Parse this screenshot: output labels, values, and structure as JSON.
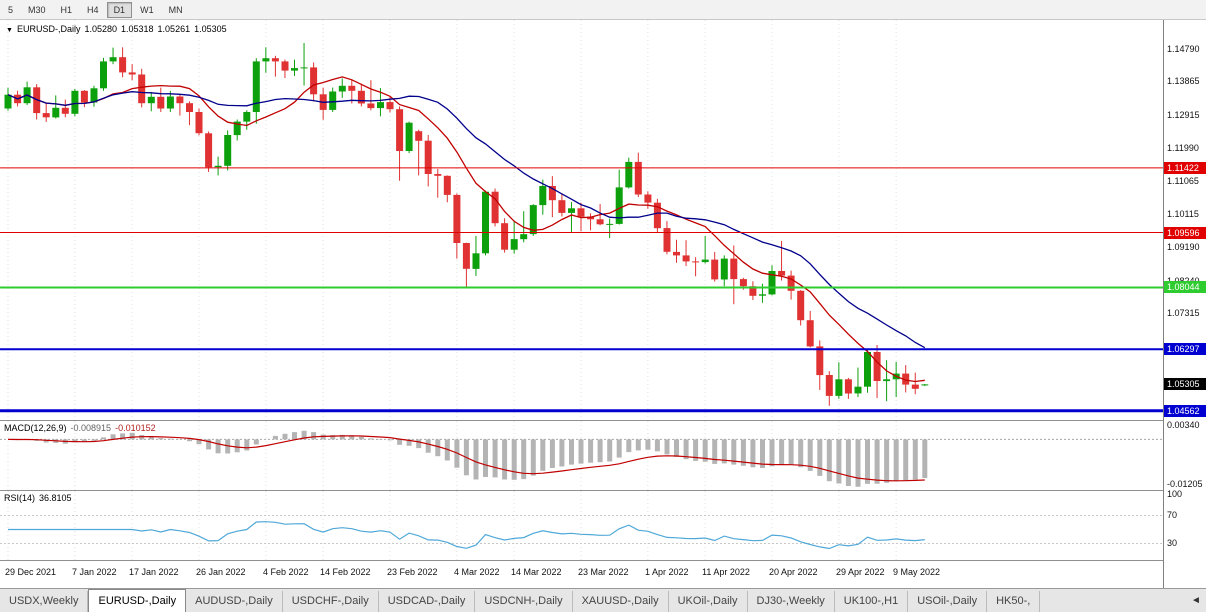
{
  "toolbar": {
    "timeframes": [
      {
        "label": "5",
        "active": false
      },
      {
        "label": "M30",
        "active": false
      },
      {
        "label": "H1",
        "active": false
      },
      {
        "label": "H4",
        "active": false
      },
      {
        "label": "D1",
        "active": true
      },
      {
        "label": "W1",
        "active": false
      },
      {
        "label": "MN",
        "active": false
      }
    ]
  },
  "main_chart": {
    "dropdown_arrow": "▼",
    "symbol_label": "EURUSD-,Daily",
    "open": "1.05280",
    "high": "1.05318",
    "low": "1.05261",
    "close": "1.05305"
  },
  "macd_panel": {
    "label": "MACD(12,26,9)",
    "value_main": "-0.008915",
    "value_signal": "-0.010152"
  },
  "rsi_panel": {
    "label": "RSI(14)",
    "value": "36.8105"
  },
  "tabs": {
    "items": [
      {
        "label": "USDX,Weekly",
        "active": false
      },
      {
        "label": "EURUSD-,Daily",
        "active": true
      },
      {
        "label": "AUDUSD-,Daily",
        "active": false
      },
      {
        "label": "USDCHF-,Daily",
        "active": false
      },
      {
        "label": "USDCAD-,Daily",
        "active": false
      },
      {
        "label": "USDCNH-,Daily",
        "active": false
      },
      {
        "label": "XAUUSD-,Daily",
        "active": false
      },
      {
        "label": "UKOil-,Daily",
        "active": false
      },
      {
        "label": "DJ30-,Weekly",
        "active": false
      },
      {
        "label": "UK100-,H1",
        "active": false
      },
      {
        "label": "USOil-,Daily",
        "active": false
      },
      {
        "label": "HK50-,",
        "active": false
      }
    ],
    "scroll_left_arrow": "◄"
  },
  "chart_data": {
    "type": "candlestick",
    "symbol": "EURUSD-",
    "timeframe": "Daily",
    "up_color": "#0CA10C",
    "down_color": "#E03232",
    "price_range": [
      1.043,
      1.156
    ],
    "y_axis_labels": [
      {
        "value": 1.1479,
        "label": "1.14790"
      },
      {
        "value": 1.13865,
        "label": "1.13865"
      },
      {
        "value": 1.12915,
        "label": "1.12915"
      },
      {
        "value": 1.1199,
        "label": "1.11990"
      },
      {
        "value": 1.11065,
        "label": "1.11065"
      },
      {
        "value": 1.10115,
        "label": "1.10115"
      },
      {
        "value": 1.0919,
        "label": "1.09190"
      },
      {
        "value": 1.0824,
        "label": "1.08240"
      },
      {
        "value": 1.07315,
        "label": "1.07315"
      }
    ],
    "hlines": [
      {
        "price": 1.11422,
        "label": "1.11422",
        "color": "#E00000",
        "width": 1
      },
      {
        "price": 1.09596,
        "label": "1.09596",
        "color": "#E00000",
        "width": 1
      },
      {
        "price": 1.08044,
        "label": "1.08044",
        "color": "#2FCC2F",
        "width": 2
      },
      {
        "price": 1.06297,
        "label": "1.06297",
        "color": "#0000D0",
        "width": 2
      },
      {
        "price": 1.04562,
        "label": "1.04562",
        "color": "#0000D0",
        "width": 3
      }
    ],
    "current_price": {
      "value": 1.05305,
      "label": "1.05305",
      "color": "#000000"
    },
    "moving_averages": [
      {
        "period": 10,
        "color": "#C00000",
        "type": "sma"
      },
      {
        "period": 20,
        "color": "#00008B",
        "type": "sma"
      }
    ],
    "x_axis_labels": [
      {
        "index": 0,
        "label": "29 Dec 2021"
      },
      {
        "index": 7,
        "label": "7 Jan 2022"
      },
      {
        "index": 13,
        "label": "17 Jan 2022"
      },
      {
        "index": 20,
        "label": "26 Jan 2022"
      },
      {
        "index": 27,
        "label": "4 Feb 2022"
      },
      {
        "index": 33,
        "label": "14 Feb 2022"
      },
      {
        "index": 40,
        "label": "23 Feb 2022"
      },
      {
        "index": 47,
        "label": "4 Mar 2022"
      },
      {
        "index": 53,
        "label": "14 Mar 2022"
      },
      {
        "index": 60,
        "label": "23 Mar 2022"
      },
      {
        "index": 67,
        "label": "1 Apr 2022"
      },
      {
        "index": 73,
        "label": "11 Apr 2022"
      },
      {
        "index": 80,
        "label": "20 Apr 2022"
      },
      {
        "index": 87,
        "label": "29 Apr 2022"
      },
      {
        "index": 93,
        "label": "9 May 2022"
      }
    ],
    "candles": [
      [
        1.131,
        1.1369,
        1.1304,
        1.1349
      ],
      [
        1.1349,
        1.136,
        1.1316,
        1.1325
      ],
      [
        1.1325,
        1.1386,
        1.132,
        1.137
      ],
      [
        1.137,
        1.1379,
        1.1279,
        1.1297
      ],
      [
        1.1297,
        1.1324,
        1.1272,
        1.1285
      ],
      [
        1.1285,
        1.1347,
        1.1282,
        1.1312
      ],
      [
        1.1312,
        1.1335,
        1.1285,
        1.1295
      ],
      [
        1.1295,
        1.1365,
        1.1288,
        1.136
      ],
      [
        1.136,
        1.1362,
        1.1314,
        1.1327
      ],
      [
        1.1327,
        1.1374,
        1.1315,
        1.1367
      ],
      [
        1.1367,
        1.1453,
        1.136,
        1.1443
      ],
      [
        1.1443,
        1.1482,
        1.1435,
        1.1455
      ],
      [
        1.1455,
        1.1483,
        1.1398,
        1.1412
      ],
      [
        1.1412,
        1.1435,
        1.139,
        1.1406
      ],
      [
        1.1406,
        1.1422,
        1.1313,
        1.1325
      ],
      [
        1.1325,
        1.1357,
        1.1302,
        1.1343
      ],
      [
        1.1343,
        1.1369,
        1.13,
        1.131
      ],
      [
        1.131,
        1.136,
        1.13,
        1.1344
      ],
      [
        1.1344,
        1.1348,
        1.129,
        1.1325
      ],
      [
        1.1325,
        1.133,
        1.1263,
        1.13
      ],
      [
        1.13,
        1.131,
        1.1234,
        1.124
      ],
      [
        1.124,
        1.1245,
        1.1131,
        1.1144
      ],
      [
        1.1144,
        1.1174,
        1.1121,
        1.1148
      ],
      [
        1.1148,
        1.1248,
        1.1135,
        1.1235
      ],
      [
        1.1235,
        1.1279,
        1.122,
        1.1273
      ],
      [
        1.1273,
        1.1305,
        1.125,
        1.13
      ],
      [
        1.13,
        1.1452,
        1.1267,
        1.1443
      ],
      [
        1.1443,
        1.1483,
        1.1411,
        1.1452
      ],
      [
        1.1452,
        1.1459,
        1.14,
        1.1443
      ],
      [
        1.1443,
        1.1448,
        1.1396,
        1.1417
      ],
      [
        1.1417,
        1.1448,
        1.1402,
        1.1424
      ],
      [
        1.1424,
        1.1495,
        1.1375,
        1.1426
      ],
      [
        1.1426,
        1.144,
        1.133,
        1.135
      ],
      [
        1.135,
        1.1369,
        1.1278,
        1.1306
      ],
      [
        1.1306,
        1.1369,
        1.13,
        1.1358
      ],
      [
        1.1358,
        1.1395,
        1.134,
        1.1374
      ],
      [
        1.1374,
        1.1392,
        1.1324,
        1.136
      ],
      [
        1.136,
        1.138,
        1.1316,
        1.1324
      ],
      [
        1.1324,
        1.139,
        1.1305,
        1.1311
      ],
      [
        1.1311,
        1.1368,
        1.1288,
        1.1328
      ],
      [
        1.1328,
        1.1344,
        1.1299,
        1.1308
      ],
      [
        1.1308,
        1.1316,
        1.1106,
        1.119
      ],
      [
        1.119,
        1.1273,
        1.1184,
        1.127
      ],
      [
        1.1246,
        1.125,
        1.1121,
        1.1219
      ],
      [
        1.1219,
        1.1235,
        1.109,
        1.1125
      ],
      [
        1.1125,
        1.1139,
        1.1058,
        1.112
      ],
      [
        1.112,
        1.1121,
        1.1045,
        1.1066
      ],
      [
        1.1066,
        1.107,
        1.0886,
        1.093
      ],
      [
        1.093,
        1.0931,
        1.0806,
        1.0857
      ],
      [
        1.0857,
        1.095,
        1.0837,
        1.0901
      ],
      [
        1.0901,
        1.1078,
        1.0895,
        1.1075
      ],
      [
        1.1075,
        1.1084,
        1.0977,
        1.0986
      ],
      [
        1.0986,
        1.1,
        1.0903,
        1.0911
      ],
      [
        1.0911,
        1.0992,
        1.09,
        1.0941
      ],
      [
        1.0941,
        1.102,
        1.0932,
        1.0955
      ],
      [
        1.0955,
        1.104,
        1.095,
        1.1037
      ],
      [
        1.1037,
        1.1109,
        1.101,
        1.1091
      ],
      [
        1.1091,
        1.1119,
        1.1003,
        1.1051
      ],
      [
        1.1051,
        1.1069,
        1.1005,
        1.1015
      ],
      [
        1.1015,
        1.1046,
        1.096,
        1.1028
      ],
      [
        1.1028,
        1.1044,
        1.0963,
        1.1004
      ],
      [
        1.1004,
        1.1014,
        1.0966,
        1.0997
      ],
      [
        1.0997,
        1.104,
        1.098,
        1.0983
      ],
      [
        1.0983,
        1.0999,
        1.0944,
        1.0984
      ],
      [
        1.0984,
        1.1137,
        1.0982,
        1.1087
      ],
      [
        1.1087,
        1.1171,
        1.1084,
        1.1159
      ],
      [
        1.1159,
        1.1185,
        1.106,
        1.1067
      ],
      [
        1.1067,
        1.1076,
        1.1027,
        1.1044
      ],
      [
        1.1044,
        1.1055,
        1.096,
        1.0972
      ],
      [
        1.0972,
        1.0992,
        1.0898,
        1.0905
      ],
      [
        1.0905,
        1.0939,
        1.0874,
        1.0895
      ],
      [
        1.0895,
        1.0938,
        1.0865,
        1.0878
      ],
      [
        1.0878,
        1.089,
        1.0836,
        1.0876
      ],
      [
        1.0876,
        1.095,
        1.0872,
        1.0883
      ],
      [
        1.0883,
        1.0905,
        1.0821,
        1.0827
      ],
      [
        1.0827,
        1.0895,
        1.0808,
        1.0886
      ],
      [
        1.0886,
        1.0923,
        1.0757,
        1.0828
      ],
      [
        1.0828,
        1.0832,
        1.0798,
        1.0808
      ],
      [
        1.0808,
        1.0822,
        1.0769,
        1.0781
      ],
      [
        1.0781,
        1.0815,
        1.0761,
        1.0785
      ],
      [
        1.0785,
        1.0867,
        1.0782,
        1.0851
      ],
      [
        1.0851,
        1.0936,
        1.0824,
        1.0838
      ],
      [
        1.0838,
        1.0852,
        1.077,
        1.0795
      ],
      [
        1.0795,
        1.0797,
        1.0697,
        1.0712
      ],
      [
        1.0712,
        1.0738,
        1.0635,
        1.0638
      ],
      [
        1.0638,
        1.0655,
        1.0515,
        1.0557
      ],
      [
        1.0557,
        1.0568,
        1.047,
        1.0498
      ],
      [
        1.0498,
        1.0593,
        1.049,
        1.0545
      ],
      [
        1.0545,
        1.0549,
        1.049,
        1.0505
      ],
      [
        1.0505,
        1.0578,
        1.0495,
        1.0524
      ],
      [
        1.0524,
        1.0632,
        1.0507,
        1.0622
      ],
      [
        1.0622,
        1.0642,
        1.0492,
        1.054
      ],
      [
        1.054,
        1.0599,
        1.0483,
        1.0545
      ],
      [
        1.0545,
        1.0594,
        1.0495,
        1.0561
      ],
      [
        1.0561,
        1.0585,
        1.0508,
        1.053
      ],
      [
        1.053,
        1.0564,
        1.0503,
        1.0518
      ],
      [
        1.0528,
        1.05318,
        1.05261,
        1.05305
      ]
    ],
    "macd": {
      "params": [
        12,
        26,
        9
      ],
      "range": [
        -0.0135,
        0.0048
      ],
      "axis_labels": [
        {
          "value": 0.0034,
          "label": "0.00340"
        },
        {
          "value": -0.01205,
          "label": "-0.01205"
        }
      ],
      "histogram_color": "#B4B4B4",
      "signal_color": "#C00000"
    },
    "rsi": {
      "period": 14,
      "range": [
        5,
        105
      ],
      "levels": [
        70,
        30
      ],
      "axis_labels": [
        {
          "value": 100,
          "label": "100"
        },
        {
          "value": 70,
          "label": "70"
        },
        {
          "value": 30,
          "label": "30"
        }
      ],
      "color": "#4FA8D8"
    }
  }
}
